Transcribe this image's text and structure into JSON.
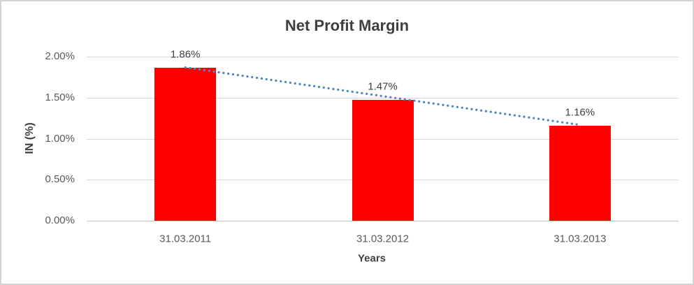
{
  "chart_data": {
    "type": "bar",
    "title": "Net Profit Margin",
    "xlabel": "Years",
    "ylabel": "IN (%)",
    "categories": [
      "31.03.2011",
      "31.03.2012",
      "31.03.2013"
    ],
    "values": [
      1.86,
      1.47,
      1.16
    ],
    "value_labels": [
      "1.86%",
      "1.47%",
      "1.16%"
    ],
    "y_ticks": [
      {
        "value": 0.0,
        "label": "0.00%"
      },
      {
        "value": 0.5,
        "label": "0.50%"
      },
      {
        "value": 1.0,
        "label": "1.00%"
      },
      {
        "value": 1.5,
        "label": "1.50%"
      },
      {
        "value": 2.0,
        "label": "2.00%"
      }
    ],
    "ylim": [
      0,
      2.0
    ],
    "grid": true,
    "legend": "none",
    "bar_color": "#ff0000",
    "trendline": {
      "type": "linear",
      "style": "dotted",
      "color": "#4a86c8"
    },
    "title_color": "#3f3f3f",
    "label_color": "#404040",
    "tick_color": "#595959",
    "gridline_color": "#d9d9d9"
  }
}
